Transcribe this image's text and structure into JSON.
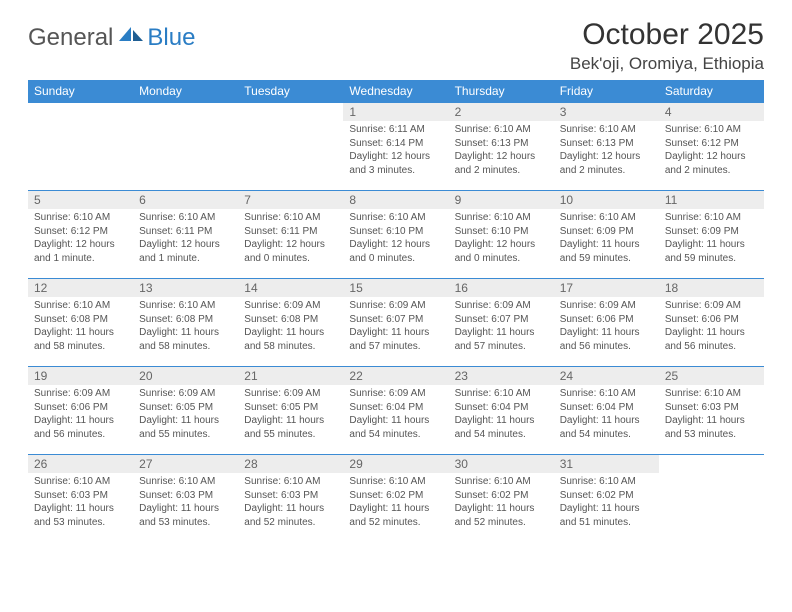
{
  "brand": {
    "text_gray": "General",
    "text_blue": "Blue"
  },
  "title": "October 2025",
  "location": "Bek'oji, Oromiya, Ethiopia",
  "colors": {
    "header_bg": "#3b8bd4",
    "header_fg": "#ffffff",
    "daynum_bg": "#ededed",
    "row_border": "#3b8bd4",
    "logo_blue": "#2a7dc4",
    "text": "#555555"
  },
  "day_headers": [
    "Sunday",
    "Monday",
    "Tuesday",
    "Wednesday",
    "Thursday",
    "Friday",
    "Saturday"
  ],
  "weeks": [
    [
      null,
      null,
      null,
      {
        "n": "1",
        "sr": "6:11 AM",
        "ss": "6:14 PM",
        "dl": "12 hours and 3 minutes."
      },
      {
        "n": "2",
        "sr": "6:10 AM",
        "ss": "6:13 PM",
        "dl": "12 hours and 2 minutes."
      },
      {
        "n": "3",
        "sr": "6:10 AM",
        "ss": "6:13 PM",
        "dl": "12 hours and 2 minutes."
      },
      {
        "n": "4",
        "sr": "6:10 AM",
        "ss": "6:12 PM",
        "dl": "12 hours and 2 minutes."
      }
    ],
    [
      {
        "n": "5",
        "sr": "6:10 AM",
        "ss": "6:12 PM",
        "dl": "12 hours and 1 minute."
      },
      {
        "n": "6",
        "sr": "6:10 AM",
        "ss": "6:11 PM",
        "dl": "12 hours and 1 minute."
      },
      {
        "n": "7",
        "sr": "6:10 AM",
        "ss": "6:11 PM",
        "dl": "12 hours and 0 minutes."
      },
      {
        "n": "8",
        "sr": "6:10 AM",
        "ss": "6:10 PM",
        "dl": "12 hours and 0 minutes."
      },
      {
        "n": "9",
        "sr": "6:10 AM",
        "ss": "6:10 PM",
        "dl": "12 hours and 0 minutes."
      },
      {
        "n": "10",
        "sr": "6:10 AM",
        "ss": "6:09 PM",
        "dl": "11 hours and 59 minutes."
      },
      {
        "n": "11",
        "sr": "6:10 AM",
        "ss": "6:09 PM",
        "dl": "11 hours and 59 minutes."
      }
    ],
    [
      {
        "n": "12",
        "sr": "6:10 AM",
        "ss": "6:08 PM",
        "dl": "11 hours and 58 minutes."
      },
      {
        "n": "13",
        "sr": "6:10 AM",
        "ss": "6:08 PM",
        "dl": "11 hours and 58 minutes."
      },
      {
        "n": "14",
        "sr": "6:09 AM",
        "ss": "6:08 PM",
        "dl": "11 hours and 58 minutes."
      },
      {
        "n": "15",
        "sr": "6:09 AM",
        "ss": "6:07 PM",
        "dl": "11 hours and 57 minutes."
      },
      {
        "n": "16",
        "sr": "6:09 AM",
        "ss": "6:07 PM",
        "dl": "11 hours and 57 minutes."
      },
      {
        "n": "17",
        "sr": "6:09 AM",
        "ss": "6:06 PM",
        "dl": "11 hours and 56 minutes."
      },
      {
        "n": "18",
        "sr": "6:09 AM",
        "ss": "6:06 PM",
        "dl": "11 hours and 56 minutes."
      }
    ],
    [
      {
        "n": "19",
        "sr": "6:09 AM",
        "ss": "6:06 PM",
        "dl": "11 hours and 56 minutes."
      },
      {
        "n": "20",
        "sr": "6:09 AM",
        "ss": "6:05 PM",
        "dl": "11 hours and 55 minutes."
      },
      {
        "n": "21",
        "sr": "6:09 AM",
        "ss": "6:05 PM",
        "dl": "11 hours and 55 minutes."
      },
      {
        "n": "22",
        "sr": "6:09 AM",
        "ss": "6:04 PM",
        "dl": "11 hours and 54 minutes."
      },
      {
        "n": "23",
        "sr": "6:10 AM",
        "ss": "6:04 PM",
        "dl": "11 hours and 54 minutes."
      },
      {
        "n": "24",
        "sr": "6:10 AM",
        "ss": "6:04 PM",
        "dl": "11 hours and 54 minutes."
      },
      {
        "n": "25",
        "sr": "6:10 AM",
        "ss": "6:03 PM",
        "dl": "11 hours and 53 minutes."
      }
    ],
    [
      {
        "n": "26",
        "sr": "6:10 AM",
        "ss": "6:03 PM",
        "dl": "11 hours and 53 minutes."
      },
      {
        "n": "27",
        "sr": "6:10 AM",
        "ss": "6:03 PM",
        "dl": "11 hours and 53 minutes."
      },
      {
        "n": "28",
        "sr": "6:10 AM",
        "ss": "6:03 PM",
        "dl": "11 hours and 52 minutes."
      },
      {
        "n": "29",
        "sr": "6:10 AM",
        "ss": "6:02 PM",
        "dl": "11 hours and 52 minutes."
      },
      {
        "n": "30",
        "sr": "6:10 AM",
        "ss": "6:02 PM",
        "dl": "11 hours and 52 minutes."
      },
      {
        "n": "31",
        "sr": "6:10 AM",
        "ss": "6:02 PM",
        "dl": "11 hours and 51 minutes."
      },
      null
    ]
  ],
  "labels": {
    "sunrise": "Sunrise:",
    "sunset": "Sunset:",
    "daylight": "Daylight:"
  }
}
